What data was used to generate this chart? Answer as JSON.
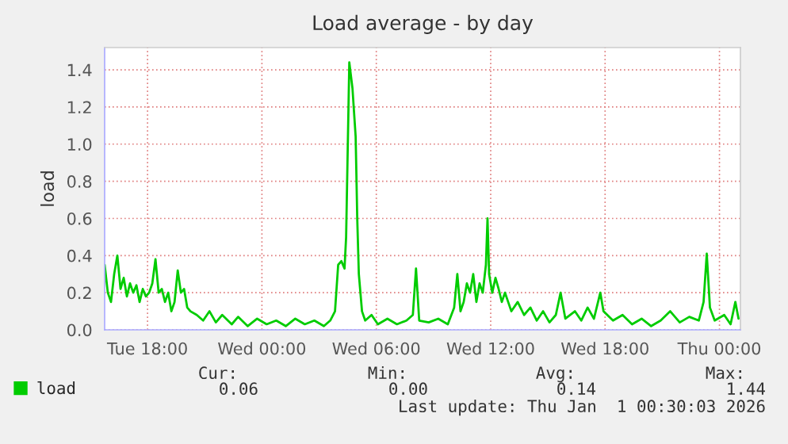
{
  "chart_data": {
    "type": "line",
    "title": "Load average - by day",
    "ylabel": "load",
    "series": [
      {
        "name": "load",
        "color": "#00cc00",
        "x": [
          "2025-12-30T15:45",
          "2025-12-30T15:55",
          "2025-12-30T16:05",
          "2025-12-30T16:15",
          "2025-12-30T16:25",
          "2025-12-30T16:35",
          "2025-12-30T16:45",
          "2025-12-30T16:55",
          "2025-12-30T17:05",
          "2025-12-30T17:15",
          "2025-12-30T17:25",
          "2025-12-30T17:35",
          "2025-12-30T17:45",
          "2025-12-30T17:55",
          "2025-12-30T18:05",
          "2025-12-30T18:15",
          "2025-12-30T18:25",
          "2025-12-30T18:35",
          "2025-12-30T18:45",
          "2025-12-30T18:55",
          "2025-12-30T19:05",
          "2025-12-30T19:15",
          "2025-12-30T19:25",
          "2025-12-30T19:35",
          "2025-12-30T19:45",
          "2025-12-30T19:55",
          "2025-12-30T20:05",
          "2025-12-30T20:15",
          "2025-12-30T20:35",
          "2025-12-30T20:55",
          "2025-12-30T21:15",
          "2025-12-30T21:35",
          "2025-12-30T21:55",
          "2025-12-30T22:25",
          "2025-12-30T22:45",
          "2025-12-30T23:15",
          "2025-12-30T23:45",
          "2025-12-31T00:15",
          "2025-12-31T00:45",
          "2025-12-31T01:15",
          "2025-12-31T01:45",
          "2025-12-31T02:15",
          "2025-12-31T02:45",
          "2025-12-31T03:15",
          "2025-12-31T03:35",
          "2025-12-31T03:50",
          "2025-12-31T04:00",
          "2025-12-31T04:10",
          "2025-12-31T04:20",
          "2025-12-31T04:25",
          "2025-12-31T04:35",
          "2025-12-31T04:45",
          "2025-12-31T04:55",
          "2025-12-31T05:00",
          "2025-12-31T05:05",
          "2025-12-31T05:15",
          "2025-12-31T05:25",
          "2025-12-31T05:45",
          "2025-12-31T06:05",
          "2025-12-31T06:35",
          "2025-12-31T07:05",
          "2025-12-31T07:35",
          "2025-12-31T07:55",
          "2025-12-31T08:05",
          "2025-12-31T08:15",
          "2025-12-31T08:45",
          "2025-12-31T09:15",
          "2025-12-31T09:45",
          "2025-12-31T10:05",
          "2025-12-31T10:15",
          "2025-12-31T10:25",
          "2025-12-31T10:35",
          "2025-12-31T10:45",
          "2025-12-31T10:55",
          "2025-12-31T11:05",
          "2025-12-31T11:15",
          "2025-12-31T11:25",
          "2025-12-31T11:35",
          "2025-12-31T11:45",
          "2025-12-31T11:50",
          "2025-12-31T11:55",
          "2025-12-31T12:05",
          "2025-12-31T12:15",
          "2025-12-31T12:25",
          "2025-12-31T12:35",
          "2025-12-31T12:45",
          "2025-12-31T13:05",
          "2025-12-31T13:25",
          "2025-12-31T13:45",
          "2025-12-31T14:05",
          "2025-12-31T14:25",
          "2025-12-31T14:45",
          "2025-12-31T15:05",
          "2025-12-31T15:25",
          "2025-12-31T15:40",
          "2025-12-31T15:55",
          "2025-12-31T16:25",
          "2025-12-31T16:45",
          "2025-12-31T17:05",
          "2025-12-31T17:25",
          "2025-12-31T17:45",
          "2025-12-31T17:55",
          "2025-12-31T18:25",
          "2025-12-31T18:55",
          "2025-12-31T19:25",
          "2025-12-31T19:55",
          "2025-12-31T20:25",
          "2025-12-31T20:55",
          "2025-12-31T21:25",
          "2025-12-31T21:55",
          "2025-12-31T22:25",
          "2025-12-31T22:55",
          "2025-12-31T23:10",
          "2025-12-31T23:20",
          "2025-12-31T23:30",
          "2025-12-31T23:45",
          "2026-01-01T00:15",
          "2026-01-01T00:35",
          "2026-01-01T00:50",
          "2026-01-01T01:00"
        ],
        "values": [
          0.35,
          0.2,
          0.15,
          0.3,
          0.4,
          0.22,
          0.28,
          0.18,
          0.25,
          0.2,
          0.24,
          0.15,
          0.22,
          0.18,
          0.2,
          0.25,
          0.38,
          0.2,
          0.22,
          0.15,
          0.2,
          0.1,
          0.15,
          0.32,
          0.2,
          0.22,
          0.12,
          0.1,
          0.08,
          0.05,
          0.1,
          0.04,
          0.08,
          0.03,
          0.07,
          0.02,
          0.06,
          0.03,
          0.05,
          0.02,
          0.06,
          0.03,
          0.05,
          0.02,
          0.05,
          0.1,
          0.35,
          0.37,
          0.33,
          0.5,
          1.44,
          1.3,
          1.04,
          0.6,
          0.3,
          0.1,
          0.05,
          0.08,
          0.03,
          0.06,
          0.03,
          0.05,
          0.08,
          0.33,
          0.05,
          0.04,
          0.06,
          0.03,
          0.12,
          0.3,
          0.1,
          0.15,
          0.25,
          0.2,
          0.3,
          0.15,
          0.25,
          0.2,
          0.35,
          0.6,
          0.3,
          0.2,
          0.28,
          0.22,
          0.15,
          0.2,
          0.1,
          0.15,
          0.08,
          0.12,
          0.05,
          0.1,
          0.04,
          0.08,
          0.2,
          0.06,
          0.1,
          0.05,
          0.12,
          0.06,
          0.2,
          0.1,
          0.05,
          0.08,
          0.03,
          0.06,
          0.02,
          0.05,
          0.1,
          0.04,
          0.07,
          0.05,
          0.15,
          0.41,
          0.12,
          0.05,
          0.08,
          0.03,
          0.15,
          0.06
        ]
      }
    ],
    "xlim": [
      "2025-12-30T15:45",
      "2026-01-01T01:06"
    ],
    "ylim": [
      0,
      1.52
    ],
    "xticks": [
      {
        "value": "2025-12-30T18:00",
        "label": "Tue 18:00"
      },
      {
        "value": "2025-12-31T00:00",
        "label": "Wed 00:00"
      },
      {
        "value": "2025-12-31T06:00",
        "label": "Wed 06:00"
      },
      {
        "value": "2025-12-31T12:00",
        "label": "Wed 12:00"
      },
      {
        "value": "2025-12-31T18:00",
        "label": "Wed 18:00"
      },
      {
        "value": "2026-01-01T00:00",
        "label": "Thu 00:00"
      }
    ],
    "yticks": [
      {
        "value": 0,
        "label": "0.0"
      },
      {
        "value": 0.2,
        "label": "0.2"
      },
      {
        "value": 0.4,
        "label": "0.4"
      },
      {
        "value": 0.6,
        "label": "0.6"
      },
      {
        "value": 0.8,
        "label": "0.8"
      },
      {
        "value": 1.0,
        "label": "1.0"
      },
      {
        "value": 1.2,
        "label": "1.2"
      },
      {
        "value": 1.4,
        "label": "1.4"
      }
    ],
    "grid": true,
    "legend": "bottom left",
    "marker": "none",
    "line_style": "solid",
    "annotations": [
      "Cur:",
      "Min:",
      "Avg:",
      "Max:",
      "0.06",
      "0.00",
      "0.14",
      "1.44",
      "Last update: Thu Jan  1 00:30:03 2026"
    ]
  }
}
